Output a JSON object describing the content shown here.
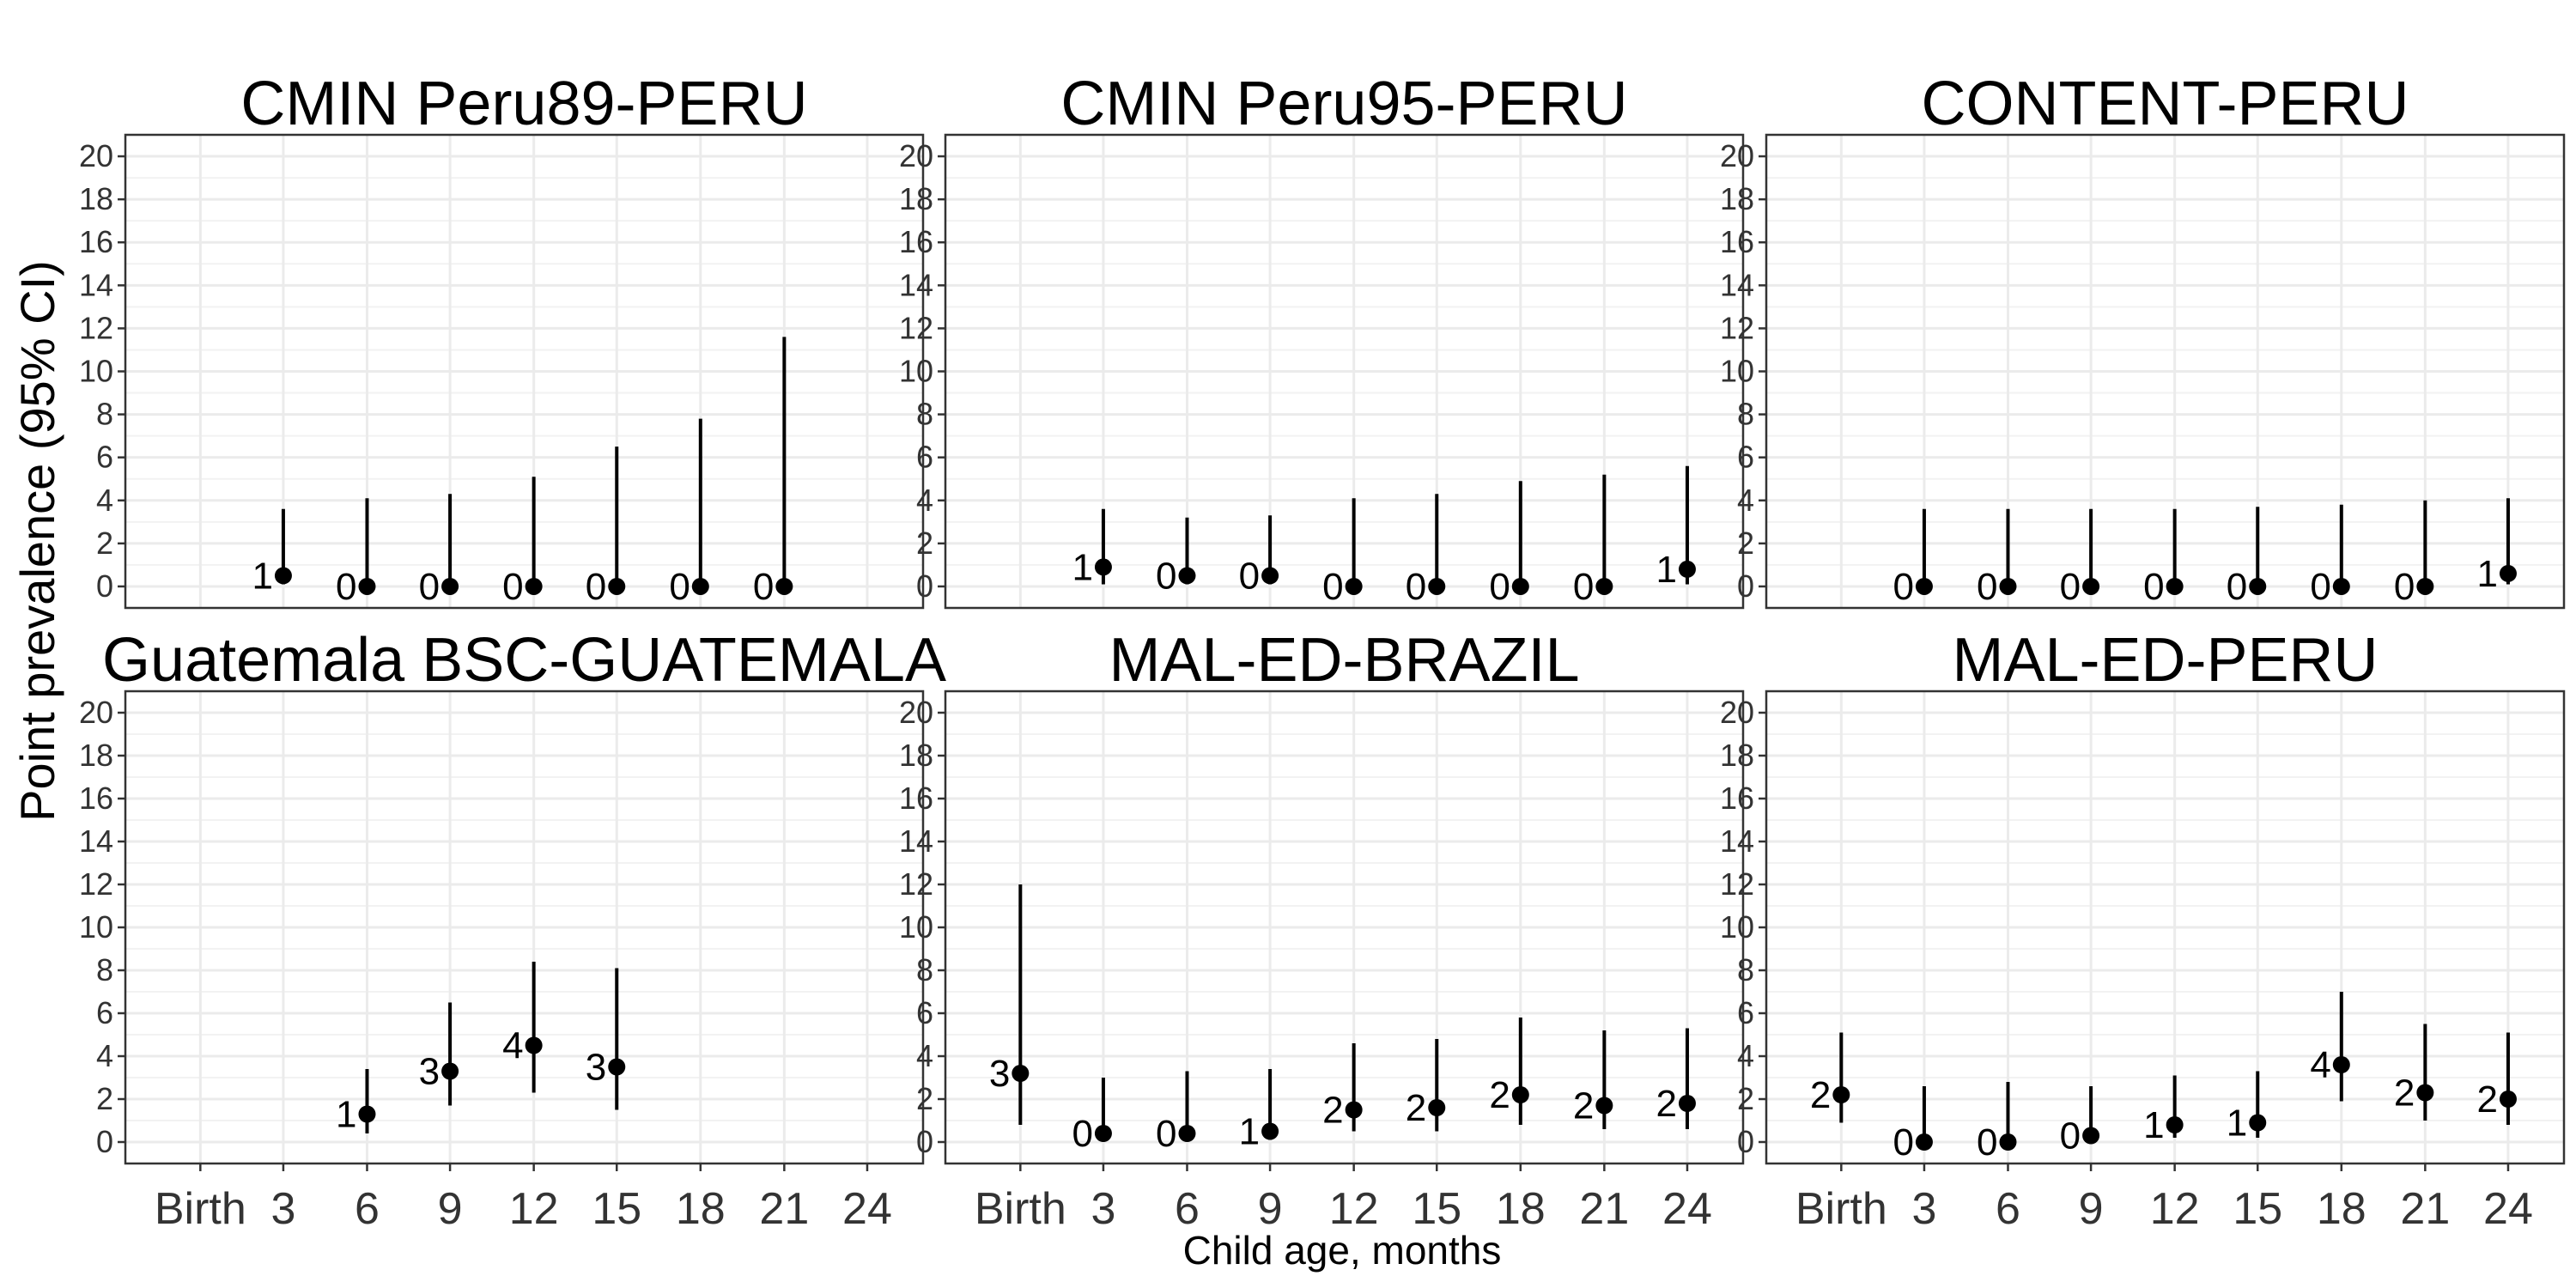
{
  "chart_data": {
    "type": "scatter",
    "ylabel": "Point prevalence (95% CI)",
    "xlabel": "Child age, months",
    "x_ticks": [
      "Birth",
      "3",
      "6",
      "9",
      "12",
      "15",
      "18",
      "21",
      "24"
    ],
    "y_ticks": [
      "0",
      "2",
      "4",
      "6",
      "8",
      "10",
      "12",
      "14",
      "16",
      "18",
      "20"
    ],
    "ylim": [
      -1,
      21
    ],
    "grid": true,
    "panels": [
      {
        "title": "CMIN Peru89-PERU",
        "points": [
          {
            "x": "3",
            "y": 0.5,
            "lo": 0.1,
            "hi": 3.6,
            "label": "1"
          },
          {
            "x": "6",
            "y": 0.0,
            "lo": 0.0,
            "hi": 4.1,
            "label": "0"
          },
          {
            "x": "9",
            "y": 0.0,
            "lo": 0.0,
            "hi": 4.3,
            "label": "0"
          },
          {
            "x": "12",
            "y": 0.0,
            "lo": 0.0,
            "hi": 5.1,
            "label": "0"
          },
          {
            "x": "15",
            "y": 0.0,
            "lo": 0.0,
            "hi": 6.5,
            "label": "0"
          },
          {
            "x": "18",
            "y": 0.0,
            "lo": 0.0,
            "hi": 7.8,
            "label": "0"
          },
          {
            "x": "21",
            "y": 0.0,
            "lo": 0.0,
            "hi": 11.6,
            "label": "0"
          }
        ]
      },
      {
        "title": "CMIN Peru95-PERU",
        "points": [
          {
            "x": "3",
            "y": 0.9,
            "lo": 0.1,
            "hi": 3.6,
            "label": "1"
          },
          {
            "x": "6",
            "y": 0.5,
            "lo": 0.1,
            "hi": 3.2,
            "label": "0"
          },
          {
            "x": "9",
            "y": 0.5,
            "lo": 0.1,
            "hi": 3.3,
            "label": "0"
          },
          {
            "x": "12",
            "y": 0.0,
            "lo": 0.0,
            "hi": 4.1,
            "label": "0"
          },
          {
            "x": "15",
            "y": 0.0,
            "lo": 0.0,
            "hi": 4.3,
            "label": "0"
          },
          {
            "x": "18",
            "y": 0.0,
            "lo": 0.0,
            "hi": 4.9,
            "label": "0"
          },
          {
            "x": "21",
            "y": 0.0,
            "lo": 0.0,
            "hi": 5.2,
            "label": "0"
          },
          {
            "x": "24",
            "y": 0.8,
            "lo": 0.1,
            "hi": 5.6,
            "label": "1"
          }
        ]
      },
      {
        "title": "CONTENT-PERU",
        "points": [
          {
            "x": "3",
            "y": 0.0,
            "lo": 0.0,
            "hi": 3.6,
            "label": "0"
          },
          {
            "x": "6",
            "y": 0.0,
            "lo": 0.0,
            "hi": 3.6,
            "label": "0"
          },
          {
            "x": "9",
            "y": 0.0,
            "lo": 0.0,
            "hi": 3.6,
            "label": "0"
          },
          {
            "x": "12",
            "y": 0.0,
            "lo": 0.0,
            "hi": 3.6,
            "label": "0"
          },
          {
            "x": "15",
            "y": 0.0,
            "lo": 0.0,
            "hi": 3.7,
            "label": "0"
          },
          {
            "x": "18",
            "y": 0.0,
            "lo": 0.0,
            "hi": 3.8,
            "label": "0"
          },
          {
            "x": "21",
            "y": 0.0,
            "lo": 0.0,
            "hi": 4.0,
            "label": "0"
          },
          {
            "x": "24",
            "y": 0.6,
            "lo": 0.1,
            "hi": 4.1,
            "label": "1"
          }
        ]
      },
      {
        "title": "Guatemala BSC-GUATEMALA",
        "points": [
          {
            "x": "6",
            "y": 1.3,
            "lo": 0.4,
            "hi": 3.4,
            "label": "1"
          },
          {
            "x": "9",
            "y": 3.3,
            "lo": 1.7,
            "hi": 6.5,
            "label": "3"
          },
          {
            "x": "12",
            "y": 4.5,
            "lo": 2.3,
            "hi": 8.4,
            "label": "4"
          },
          {
            "x": "15",
            "y": 3.5,
            "lo": 1.5,
            "hi": 8.1,
            "label": "3"
          }
        ]
      },
      {
        "title": "MAL-ED-BRAZIL",
        "points": [
          {
            "x": "Birth",
            "y": 3.2,
            "lo": 0.8,
            "hi": 12.0,
            "label": "3"
          },
          {
            "x": "3",
            "y": 0.4,
            "lo": 0.1,
            "hi": 3.0,
            "label": "0"
          },
          {
            "x": "6",
            "y": 0.4,
            "lo": 0.1,
            "hi": 3.3,
            "label": "0"
          },
          {
            "x": "9",
            "y": 0.5,
            "lo": 0.1,
            "hi": 3.4,
            "label": "1"
          },
          {
            "x": "12",
            "y": 1.5,
            "lo": 0.5,
            "hi": 4.6,
            "label": "2"
          },
          {
            "x": "15",
            "y": 1.6,
            "lo": 0.5,
            "hi": 4.8,
            "label": "2"
          },
          {
            "x": "18",
            "y": 2.2,
            "lo": 0.8,
            "hi": 5.8,
            "label": "2"
          },
          {
            "x": "21",
            "y": 1.7,
            "lo": 0.6,
            "hi": 5.2,
            "label": "2"
          },
          {
            "x": "24",
            "y": 1.8,
            "lo": 0.6,
            "hi": 5.3,
            "label": "2"
          }
        ]
      },
      {
        "title": "MAL-ED-PERU",
        "points": [
          {
            "x": "Birth",
            "y": 2.2,
            "lo": 0.9,
            "hi": 5.1,
            "label": "2"
          },
          {
            "x": "3",
            "y": 0.0,
            "lo": 0.0,
            "hi": 2.6,
            "label": "0"
          },
          {
            "x": "6",
            "y": 0.0,
            "lo": 0.0,
            "hi": 2.8,
            "label": "0"
          },
          {
            "x": "9",
            "y": 0.3,
            "lo": 0.1,
            "hi": 2.6,
            "label": "0"
          },
          {
            "x": "12",
            "y": 0.8,
            "lo": 0.2,
            "hi": 3.1,
            "label": "1"
          },
          {
            "x": "15",
            "y": 0.9,
            "lo": 0.2,
            "hi": 3.3,
            "label": "1"
          },
          {
            "x": "18",
            "y": 3.6,
            "lo": 1.9,
            "hi": 7.0,
            "label": "4"
          },
          {
            "x": "21",
            "y": 2.3,
            "lo": 1.0,
            "hi": 5.5,
            "label": "2"
          },
          {
            "x": "24",
            "y": 2.0,
            "lo": 0.8,
            "hi": 5.1,
            "label": "2"
          }
        ]
      }
    ]
  }
}
